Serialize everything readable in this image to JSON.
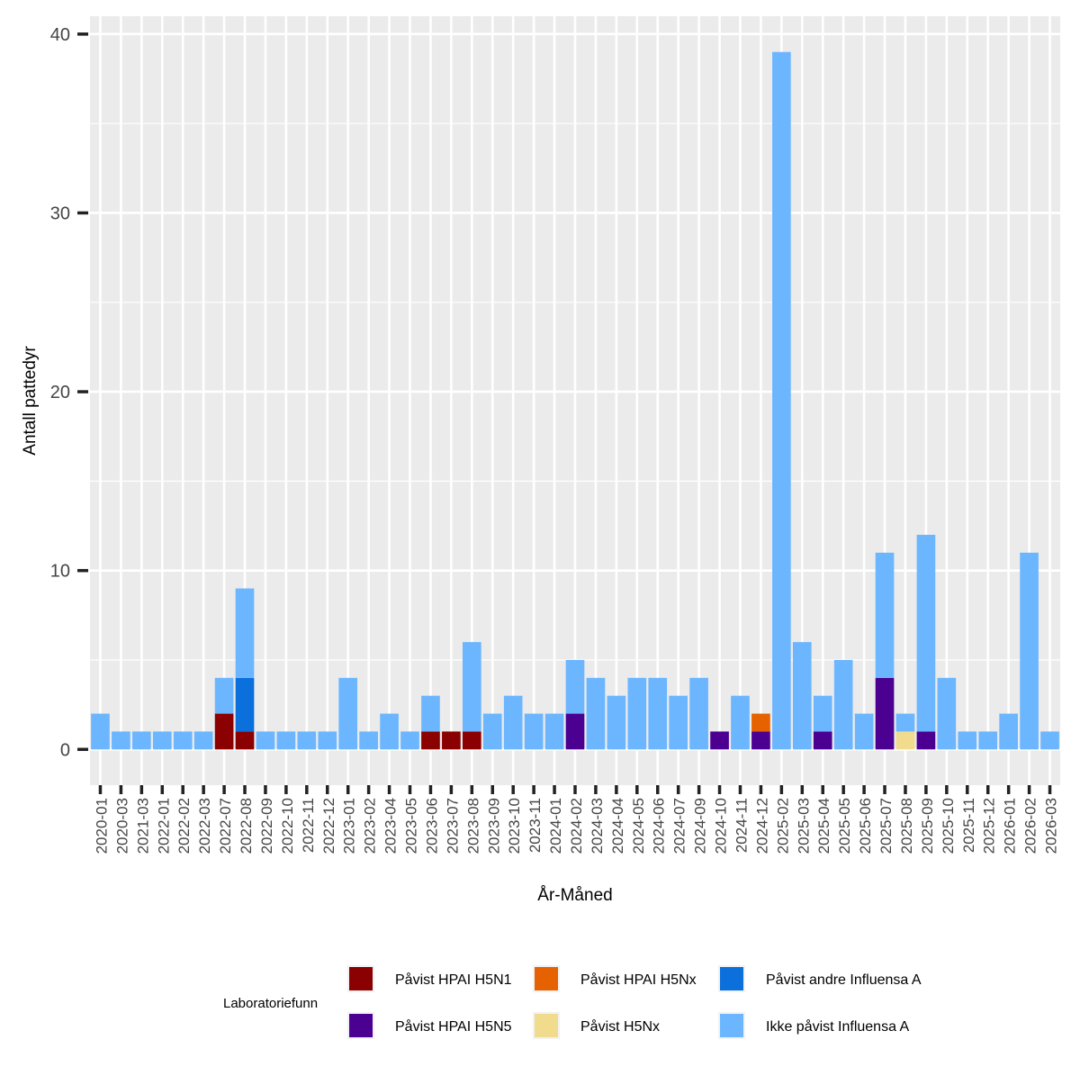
{
  "chart_data": {
    "type": "bar",
    "stacked": true,
    "title": "",
    "xlabel": "År-Måned",
    "ylabel": "Antall pattedyr",
    "ylim": [
      -2,
      41
    ],
    "yticks": [
      0,
      10,
      20,
      30,
      40
    ],
    "ytick_labels": [
      "0",
      "10",
      "20",
      "30",
      "40"
    ],
    "grid": true,
    "legend_title": "Laboratoriefunn",
    "legend_position": "bottom",
    "categories": [
      "2020-01",
      "2020-03",
      "2021-03",
      "2022-01",
      "2022-02",
      "2022-03",
      "2022-07",
      "2022-08",
      "2022-09",
      "2022-10",
      "2022-11",
      "2022-12",
      "2023-01",
      "2023-02",
      "2023-04",
      "2023-05",
      "2023-06",
      "2023-07",
      "2023-08",
      "2023-09",
      "2023-10",
      "2023-11",
      "2024-01",
      "2024-02",
      "2024-03",
      "2024-04",
      "2024-05",
      "2024-06",
      "2024-07",
      "2024-09",
      "2024-10",
      "2024-11",
      "2024-12",
      "2025-02",
      "2025-03",
      "2025-04",
      "2025-05",
      "2025-06",
      "2025-07",
      "2025-08",
      "2025-09",
      "2025-10",
      "2025-11",
      "2025-12",
      "2026-01",
      "2026-02",
      "2026-03"
    ],
    "series": [
      {
        "name": "Påvist HPAI H5N1",
        "color": "#8b0000",
        "values": [
          0,
          0,
          0,
          0,
          0,
          0,
          2,
          1,
          0,
          0,
          0,
          0,
          0,
          0,
          0,
          0,
          1,
          1,
          1,
          0,
          0,
          0,
          0,
          0,
          0,
          0,
          0,
          0,
          0,
          0,
          0,
          0,
          0,
          0,
          0,
          0,
          0,
          0,
          0,
          0,
          0,
          0,
          0,
          0,
          0,
          0,
          0
        ]
      },
      {
        "name": "Påvist HPAI H5N5",
        "color": "#4b0092",
        "values": [
          0,
          0,
          0,
          0,
          0,
          0,
          0,
          0,
          0,
          0,
          0,
          0,
          0,
          0,
          0,
          0,
          0,
          0,
          0,
          0,
          0,
          0,
          0,
          2,
          0,
          0,
          0,
          0,
          0,
          0,
          1,
          0,
          1,
          0,
          0,
          1,
          0,
          0,
          4,
          0,
          1,
          0,
          0,
          0,
          0,
          0,
          0
        ]
      },
      {
        "name": "Påvist HPAI H5Nx",
        "color": "#e66100",
        "values": [
          0,
          0,
          0,
          0,
          0,
          0,
          0,
          0,
          0,
          0,
          0,
          0,
          0,
          0,
          0,
          0,
          0,
          0,
          0,
          0,
          0,
          0,
          0,
          0,
          0,
          0,
          0,
          0,
          0,
          0,
          0,
          0,
          1,
          0,
          0,
          0,
          0,
          0,
          0,
          0,
          0,
          0,
          0,
          0,
          0,
          0,
          0
        ]
      },
      {
        "name": "Påvist H5Nx",
        "color": "#f0dc8c",
        "values": [
          0,
          0,
          0,
          0,
          0,
          0,
          0,
          0,
          0,
          0,
          0,
          0,
          0,
          0,
          0,
          0,
          0,
          0,
          0,
          0,
          0,
          0,
          0,
          0,
          0,
          0,
          0,
          0,
          0,
          0,
          0,
          0,
          0,
          0,
          0,
          0,
          0,
          0,
          0,
          1,
          0,
          0,
          0,
          0,
          0,
          0,
          0
        ]
      },
      {
        "name": "Påvist andre Influensa A",
        "color": "#0b6fdc",
        "values": [
          0,
          0,
          0,
          0,
          0,
          0,
          0,
          3,
          0,
          0,
          0,
          0,
          0,
          0,
          0,
          0,
          0,
          0,
          0,
          0,
          0,
          0,
          0,
          0,
          0,
          0,
          0,
          0,
          0,
          0,
          0,
          0,
          0,
          0,
          0,
          0,
          0,
          0,
          0,
          0,
          0,
          0,
          0,
          0,
          0,
          0,
          0
        ]
      },
      {
        "name": "Ikke påvist Influensa A",
        "color": "#6cb6ff",
        "values": [
          2,
          1,
          1,
          1,
          1,
          1,
          2,
          5,
          1,
          1,
          1,
          1,
          4,
          1,
          2,
          1,
          2,
          0,
          5,
          2,
          3,
          2,
          2,
          3,
          4,
          3,
          4,
          4,
          3,
          4,
          0,
          3,
          0,
          39,
          6,
          2,
          5,
          2,
          7,
          1,
          11,
          4,
          1,
          1,
          2,
          11,
          1
        ]
      }
    ],
    "legend_layout": [
      [
        "Påvist HPAI H5N1",
        "Påvist HPAI H5Nx",
        "Påvist andre Influensa A"
      ],
      [
        "Påvist HPAI H5N5",
        "Påvist H5Nx",
        "Ikke påvist Influensa A"
      ]
    ]
  },
  "colors": {
    "panel_background": "#ebebeb",
    "grid_line": "#ffffff",
    "tick": "#222222",
    "tick_label": "#444444",
    "axis_title": "#000000"
  }
}
